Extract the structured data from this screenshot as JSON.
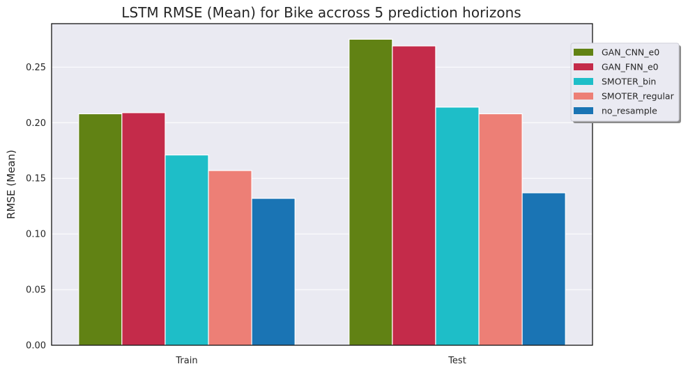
{
  "chart_data": {
    "type": "bar",
    "title": "LSTM RMSE (Mean) for Bike accross 5 prediction horizons",
    "xlabel": "",
    "ylabel": "RMSE (Mean)",
    "categories": [
      "Train",
      "Test"
    ],
    "series": [
      {
        "name": "GAN_CNN_e0",
        "color": "#618214",
        "values": [
          0.208,
          0.275
        ]
      },
      {
        "name": "GAN_FNN_e0",
        "color": "#c42b4a",
        "values": [
          0.209,
          0.269
        ]
      },
      {
        "name": "SMOTER_bin",
        "color": "#1ebec8",
        "values": [
          0.171,
          0.214
        ]
      },
      {
        "name": "SMOTER_regular",
        "color": "#ed7f76",
        "values": [
          0.157,
          0.208
        ]
      },
      {
        "name": "no_resample",
        "color": "#1a74b4",
        "values": [
          0.132,
          0.137
        ]
      }
    ],
    "ylim": [
      0,
      0.289
    ],
    "yticks": [
      0.0,
      0.05,
      0.1,
      0.15,
      0.2,
      0.25
    ],
    "ytick_labels": [
      "0.00",
      "0.05",
      "0.10",
      "0.15",
      "0.20",
      "0.25"
    ],
    "grid": true,
    "legend_position": "upper-right, partly outside the axes",
    "background": "#eaeaf2"
  }
}
